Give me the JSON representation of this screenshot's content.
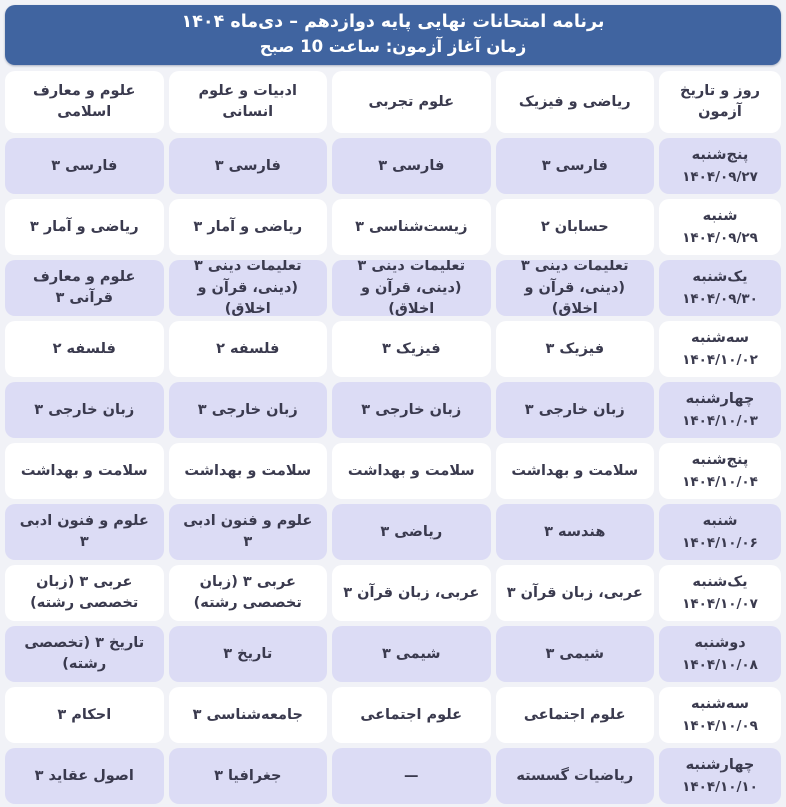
{
  "banner": {
    "title": "برنامه امتحانات نهایی پایه دوازدهم – دی‌ماه ۱۴۰۴",
    "subtitle": "زمان آغاز آزمون: ساعت 10 صبح"
  },
  "table": {
    "columns": [
      "روز و تاریخ آزمون",
      "ریاضی و فیزیک",
      "علوم تجربی",
      "ادبیات و علوم انسانی",
      "علوم و معارف اسلامی"
    ],
    "rows": [
      {
        "day": "پنج‌شنبه",
        "date": "۱۴۰۴/۰۹/۲۷",
        "cells": [
          "فارسی ۳",
          "فارسی ۳",
          "فارسی ۳",
          "فارسی ۳"
        ]
      },
      {
        "day": "شنبه",
        "date": "۱۴۰۴/۰۹/۲۹",
        "cells": [
          "حسابان ۲",
          "زیست‌شناسی ۳",
          "ریاضی و آمار ۳",
          "ریاضی و آمار ۳"
        ]
      },
      {
        "day": "یک‌شنبه",
        "date": "۱۴۰۴/۰۹/۳۰",
        "cells": [
          "تعلیمات دینی ۳ (دینی، قرآن و اخلاق)",
          "تعلیمات دینی ۳ (دینی، قرآن و اخلاق)",
          "تعلیمات دینی ۳ (دینی، قرآن و اخلاق)",
          "علوم و معارف قرآنی ۳"
        ]
      },
      {
        "day": "سه‌شنبه",
        "date": "۱۴۰۴/۱۰/۰۲",
        "cells": [
          "فیزیک ۳",
          "فیزیک ۳",
          "فلسفه ۲",
          "فلسفه ۲"
        ]
      },
      {
        "day": "چهارشنبه",
        "date": "۱۴۰۴/۱۰/۰۳",
        "cells": [
          "زبان خارجی ۳",
          "زبان خارجی ۳",
          "زبان خارجی ۳",
          "زبان خارجی ۳"
        ]
      },
      {
        "day": "پنج‌شنبه",
        "date": "۱۴۰۴/۱۰/۰۴",
        "cells": [
          "سلامت و بهداشت",
          "سلامت و بهداشت",
          "سلامت و بهداشت",
          "سلامت و بهداشت"
        ]
      },
      {
        "day": "شنبه",
        "date": "۱۴۰۴/۱۰/۰۶",
        "cells": [
          "هندسه ۳",
          "ریاضی ۳",
          "علوم و فنون ادبی ۳",
          "علوم و فنون ادبی ۳"
        ]
      },
      {
        "day": "یک‌شنبه",
        "date": "۱۴۰۴/۱۰/۰۷",
        "cells": [
          "عربی، زبان قرآن ۳",
          "عربی، زبان قرآن ۳",
          "عربی ۳ (زبان تخصصی رشته)",
          "عربی ۳ (زبان تخصصی رشته)"
        ]
      },
      {
        "day": "دوشنبه",
        "date": "۱۴۰۴/۱۰/۰۸",
        "cells": [
          "شیمی ۳",
          "شیمی ۳",
          "تاریخ ۳",
          "تاریخ ۳ (تخصصی رشته)"
        ]
      },
      {
        "day": "سه‌شنبه",
        "date": "۱۴۰۴/۱۰/۰۹",
        "cells": [
          "علوم اجتماعی",
          "علوم اجتماعی",
          "جامعه‌شناسی ۳",
          "احکام ۳"
        ]
      },
      {
        "day": "چهارشنبه",
        "date": "۱۴۰۴/۱۰/۱۰",
        "cells": [
          "ریاضیات گسسته",
          "—",
          "جغرافیا ۳",
          "اصول عقاید ۳"
        ]
      }
    ]
  },
  "colors": {
    "banner_bg": "#4064a0",
    "banner_text": "#ffffff",
    "row_alt_bg": "#dcdcf5",
    "row_bg": "#ffffff",
    "cell_text": "#3a3a4e",
    "page_bg": "#f1f2f7"
  }
}
